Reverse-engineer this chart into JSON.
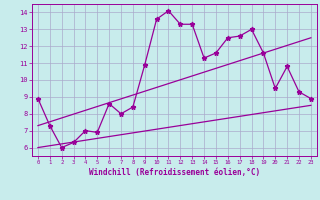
{
  "xlabel": "Windchill (Refroidissement éolien,°C)",
  "bg_color": "#c8ecec",
  "line_color": "#990099",
  "grid_color": "#aaaacc",
  "xlim": [
    -0.5,
    23.5
  ],
  "ylim": [
    5.5,
    14.5
  ],
  "yticks": [
    6,
    7,
    8,
    9,
    10,
    11,
    12,
    13,
    14
  ],
  "xticks": [
    0,
    1,
    2,
    3,
    4,
    5,
    6,
    7,
    8,
    9,
    10,
    11,
    12,
    13,
    14,
    15,
    16,
    17,
    18,
    19,
    20,
    21,
    22,
    23
  ],
  "series1_x": [
    0,
    1,
    2,
    3,
    4,
    5,
    6,
    7,
    8,
    9,
    10,
    11,
    12,
    13,
    14,
    15,
    16,
    17,
    18,
    19,
    20,
    21,
    22,
    23
  ],
  "series1_y": [
    8.9,
    7.3,
    6.0,
    6.3,
    7.0,
    6.9,
    8.6,
    8.0,
    8.4,
    10.9,
    13.6,
    14.1,
    13.3,
    13.3,
    11.3,
    11.6,
    12.5,
    12.6,
    13.0,
    11.6,
    9.5,
    10.8,
    9.3,
    8.9
  ],
  "series2_x": [
    0,
    23
  ],
  "series2_y": [
    6.0,
    8.5
  ],
  "series3_x": [
    0,
    23
  ],
  "series3_y": [
    7.3,
    12.5
  ],
  "marker": "*",
  "markersize": 3.5,
  "linewidth": 0.9
}
